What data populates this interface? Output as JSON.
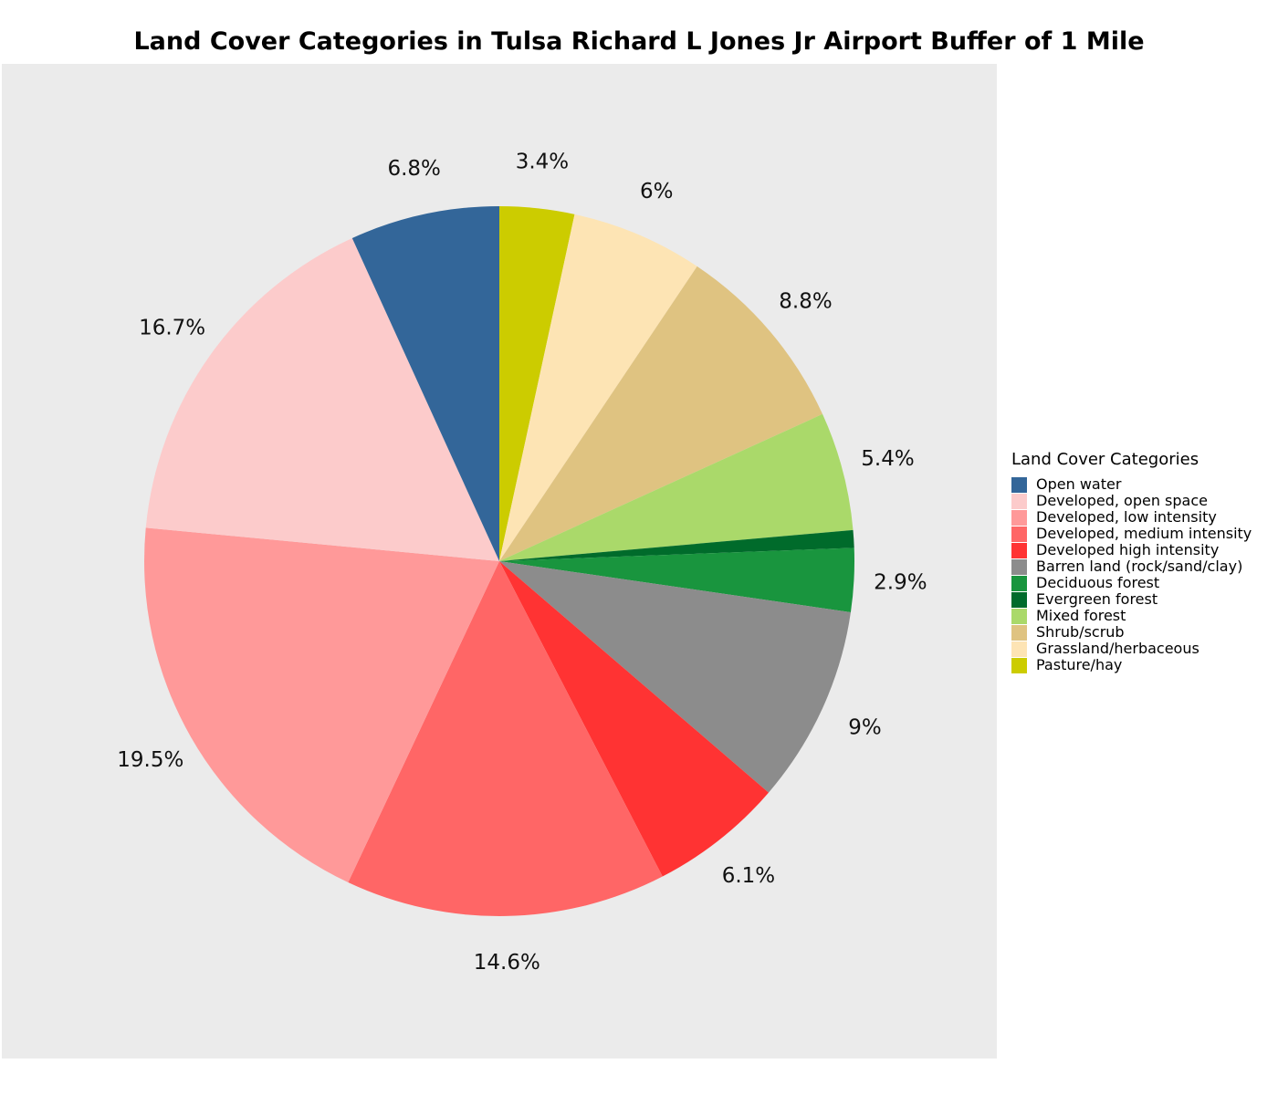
{
  "chart_data": {
    "type": "pie",
    "title": "Land Cover Categories in Tulsa Richard L Jones Jr Airport Buffer of 1 Mile",
    "legend_title": "Land Cover Categories",
    "legend_position": "right",
    "slices": [
      {
        "name": "Pasture/hay",
        "value": 3.4,
        "label": "3.4%",
        "color": "#cccc00"
      },
      {
        "name": "Grassland/herbaceous",
        "value": 6.0,
        "label": "6%",
        "color": "#fde4b4"
      },
      {
        "name": "Shrub/scrub",
        "value": 8.8,
        "label": "8.8%",
        "color": "#dfc381"
      },
      {
        "name": "Mixed forest",
        "value": 5.4,
        "label": "5.4%",
        "color": "#aad96a"
      },
      {
        "name": "Evergreen forest",
        "value": 0.8,
        "label": "",
        "color": "#006b2b"
      },
      {
        "name": "Deciduous forest",
        "value": 2.9,
        "label": "2.9%",
        "color": "#19953e"
      },
      {
        "name": "Barren land (rock/sand/clay)",
        "value": 9.0,
        "label": "9%",
        "color": "#8c8c8c"
      },
      {
        "name": "Developed high intensity",
        "value": 6.1,
        "label": "6.1%",
        "color": "#ff3333"
      },
      {
        "name": "Developed, medium intensity",
        "value": 14.6,
        "label": "14.6%",
        "color": "#ff6666"
      },
      {
        "name": "Developed, low intensity",
        "value": 19.5,
        "label": "19.5%",
        "color": "#ff9999"
      },
      {
        "name": "Developed, open space",
        "value": 16.7,
        "label": "16.7%",
        "color": "#fccbcb"
      },
      {
        "name": "Open water",
        "value": 6.8,
        "label": "6.8%",
        "color": "#336699"
      }
    ],
    "legend_order": [
      "Open water",
      "Developed, open space",
      "Developed, low intensity",
      "Developed, medium intensity",
      "Developed high intensity",
      "Barren land (rock/sand/clay)",
      "Deciduous forest",
      "Evergreen forest",
      "Mixed forest",
      "Shrub/scrub",
      "Grassland/herbaceous",
      "Pasture/hay"
    ]
  }
}
